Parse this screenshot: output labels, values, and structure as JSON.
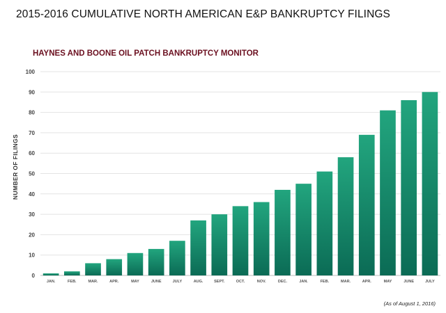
{
  "page": {
    "title": "2015-2016 CUMULATIVE NORTH AMERICAN E&P BANKRUPTCY FILINGS",
    "footnote": "(As of August 1, 2016)"
  },
  "chart_data": {
    "type": "bar",
    "title": "HAYNES AND BOONE OIL PATCH BANKRUPTCY MONITOR",
    "xlabel": "",
    "ylabel": "NUMBER OF FILINGS",
    "categories": [
      "JAN.",
      "FEB.",
      "MAR.",
      "APR.",
      "MAY",
      "JUNE",
      "JULY",
      "AUG.",
      "SEPT.",
      "OCT.",
      "NOV.",
      "DEC.",
      "JAN.",
      "FEB.",
      "MAR.",
      "APR.",
      "MAY",
      "JUNE",
      "JULY"
    ],
    "values": [
      1,
      2,
      6,
      8,
      11,
      13,
      17,
      27,
      30,
      34,
      36,
      42,
      45,
      51,
      58,
      69,
      81,
      86,
      90
    ],
    "ylim": [
      0,
      100
    ],
    "yticks": [
      0,
      10,
      20,
      30,
      40,
      50,
      60,
      70,
      80,
      90,
      100
    ],
    "grid": true,
    "colors": {
      "bar_top": "#22a57e",
      "bar_bottom": "#0b6b55",
      "title": "#6b1020"
    }
  }
}
